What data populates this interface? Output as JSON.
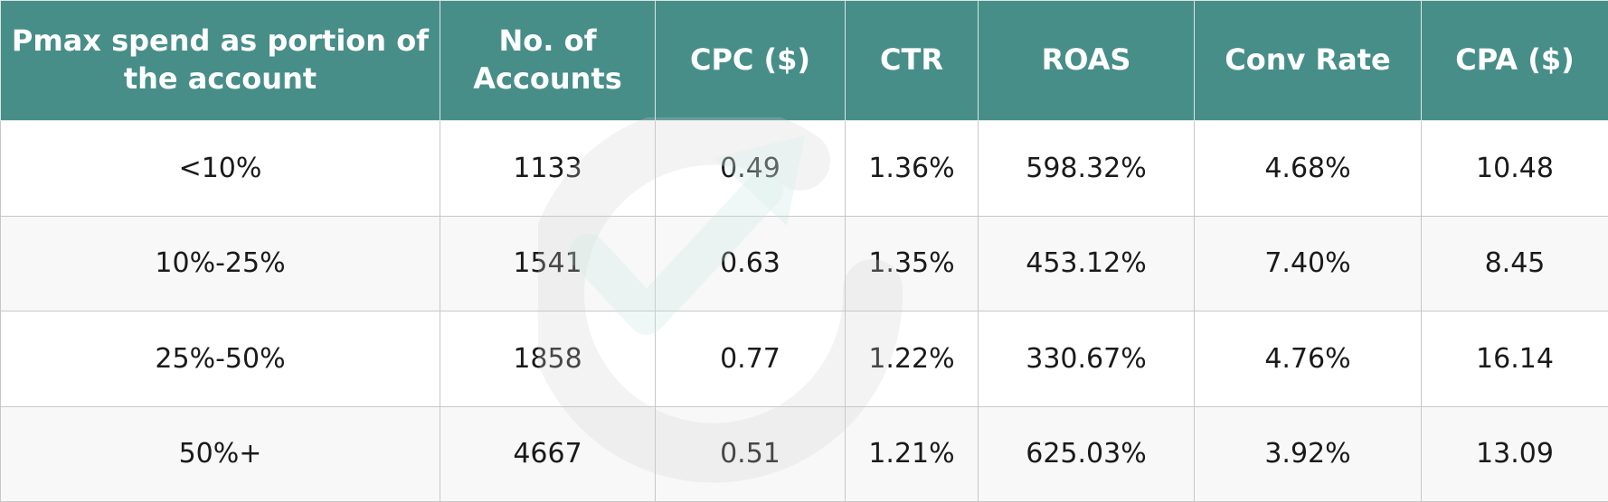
{
  "table": {
    "headers": [
      "Pmax spend as portion of the account",
      "No. of Accounts",
      "CPC ($)",
      "CTR",
      "ROAS",
      "Conv Rate",
      "CPA ($)"
    ],
    "rows": [
      [
        "<10%",
        "1133",
        "0.49",
        "1.36%",
        "598.32%",
        "4.68%",
        "10.48"
      ],
      [
        "10%-25%",
        "1541",
        "0.63",
        "1.35%",
        "453.12%",
        "7.40%",
        "8.45"
      ],
      [
        "25%-50%",
        "1858",
        "0.77",
        "1.22%",
        "330.67%",
        "4.76%",
        "16.14"
      ],
      [
        "50%+",
        "4667",
        "0.51",
        "1.21%",
        "625.03%",
        "3.92%",
        "13.09"
      ]
    ]
  },
  "colors": {
    "header_background": "#478e89",
    "header_text": "#ffffff",
    "row_odd": "#ffffff",
    "row_even": "#f5f5f5",
    "border": "#c7c7c7",
    "watermark_gray": "#d0d0d0",
    "watermark_teal": "#c5e3dd"
  },
  "watermark": {
    "icon": "logo-circle-arrow-icon"
  }
}
